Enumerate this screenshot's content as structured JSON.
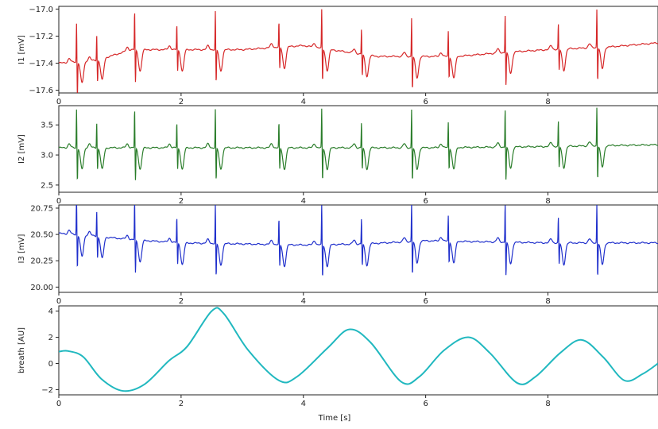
{
  "chart_data": [
    {
      "type": "line",
      "ylabel": "I1 [mV]",
      "xlim": [
        0,
        9.8
      ],
      "ylim": [
        -17.62,
        -16.98
      ],
      "yticks": [
        "-17.0",
        "-17.2",
        "-17.4",
        "-17.6"
      ],
      "xticks": [
        "0",
        "2",
        "4",
        "6",
        "8"
      ],
      "color": "#d62728",
      "series": [
        {
          "beats": [
            0.29,
            0.62,
            1.24,
            1.93,
            2.56,
            3.6,
            4.3,
            4.95,
            5.77,
            6.37,
            7.3,
            8.17,
            8.8
          ],
          "baseline": [
            [
              0,
              -17.4
            ],
            [
              0.6,
              -17.38
            ],
            [
              1.2,
              -17.3
            ],
            [
              2.5,
              -17.3
            ],
            [
              3,
              -17.3
            ],
            [
              4,
              -17.27
            ],
            [
              5.2,
              -17.35
            ],
            [
              6.5,
              -17.35
            ],
            [
              7.3,
              -17.32
            ],
            [
              8,
              -17.3
            ],
            [
              9,
              -17.28
            ],
            [
              9.8,
              -17.25
            ]
          ]
        }
      ]
    },
    {
      "type": "line",
      "ylabel": "I2 [mV]",
      "xlim": [
        0,
        9.8
      ],
      "ylim": [
        2.38,
        3.82
      ],
      "yticks": [
        "3.5",
        "3.0",
        "2.5"
      ],
      "xticks": [
        "0",
        "2",
        "4",
        "6",
        "8"
      ],
      "color": "#2a7d2a",
      "series": [
        {
          "beats": [
            0.29,
            0.62,
            1.24,
            1.93,
            2.56,
            3.6,
            4.3,
            4.95,
            5.77,
            6.37,
            7.3,
            8.17,
            8.8
          ],
          "baseline": [
            [
              0,
              3.12
            ],
            [
              2,
              3.12
            ],
            [
              4,
              3.12
            ],
            [
              6,
              3.12
            ],
            [
              8,
              3.14
            ],
            [
              9.8,
              3.17
            ]
          ]
        }
      ]
    },
    {
      "type": "line",
      "ylabel": "I3 [mV]",
      "xlim": [
        0,
        9.8
      ],
      "ylim": [
        19.95,
        20.78
      ],
      "yticks": [
        "20.75",
        "20.50",
        "20.25",
        "20.00"
      ],
      "xticks": [
        "0",
        "2",
        "4",
        "6",
        "8"
      ],
      "color": "#1f2fcc",
      "series": [
        {
          "beats": [
            0.29,
            0.62,
            1.24,
            1.93,
            2.56,
            3.6,
            4.3,
            4.95,
            5.77,
            6.37,
            7.3,
            8.17,
            8.8
          ],
          "baseline": [
            [
              0,
              20.51
            ],
            [
              0.5,
              20.49
            ],
            [
              1.2,
              20.45
            ],
            [
              2,
              20.42
            ],
            [
              3,
              20.41
            ],
            [
              4,
              20.4
            ],
            [
              5,
              20.41
            ],
            [
              6,
              20.44
            ],
            [
              7,
              20.43
            ],
            [
              8,
              20.42
            ],
            [
              9.8,
              20.42
            ]
          ]
        }
      ]
    },
    {
      "type": "line",
      "ylabel": "breath [AU]",
      "xlabel": "Time [s]",
      "xlim": [
        0,
        9.8
      ],
      "ylim": [
        -2.4,
        4.4
      ],
      "yticks": [
        "4",
        "2",
        "0",
        "-2"
      ],
      "xticks": [
        "0",
        "2",
        "4",
        "6",
        "8"
      ],
      "color": "#20b8bf",
      "series": [
        {
          "points": [
            [
              0,
              0.9
            ],
            [
              0.15,
              0.95
            ],
            [
              0.4,
              0.5
            ],
            [
              0.7,
              -1.2
            ],
            [
              1.05,
              -2.1
            ],
            [
              1.4,
              -1.6
            ],
            [
              1.8,
              0.2
            ],
            [
              2.1,
              1.3
            ],
            [
              2.5,
              4.0
            ],
            [
              2.7,
              3.8
            ],
            [
              3.1,
              1.0
            ],
            [
              3.6,
              -1.3
            ],
            [
              3.9,
              -1.0
            ],
            [
              4.4,
              1.2
            ],
            [
              4.75,
              2.6
            ],
            [
              5.1,
              1.6
            ],
            [
              5.6,
              -1.4
            ],
            [
              5.9,
              -1.0
            ],
            [
              6.3,
              1.0
            ],
            [
              6.7,
              2.0
            ],
            [
              7.05,
              0.8
            ],
            [
              7.5,
              -1.5
            ],
            [
              7.8,
              -1.0
            ],
            [
              8.2,
              0.8
            ],
            [
              8.55,
              1.8
            ],
            [
              8.9,
              0.5
            ],
            [
              9.25,
              -1.3
            ],
            [
              9.55,
              -0.8
            ],
            [
              9.8,
              0.0
            ]
          ]
        }
      ]
    }
  ]
}
